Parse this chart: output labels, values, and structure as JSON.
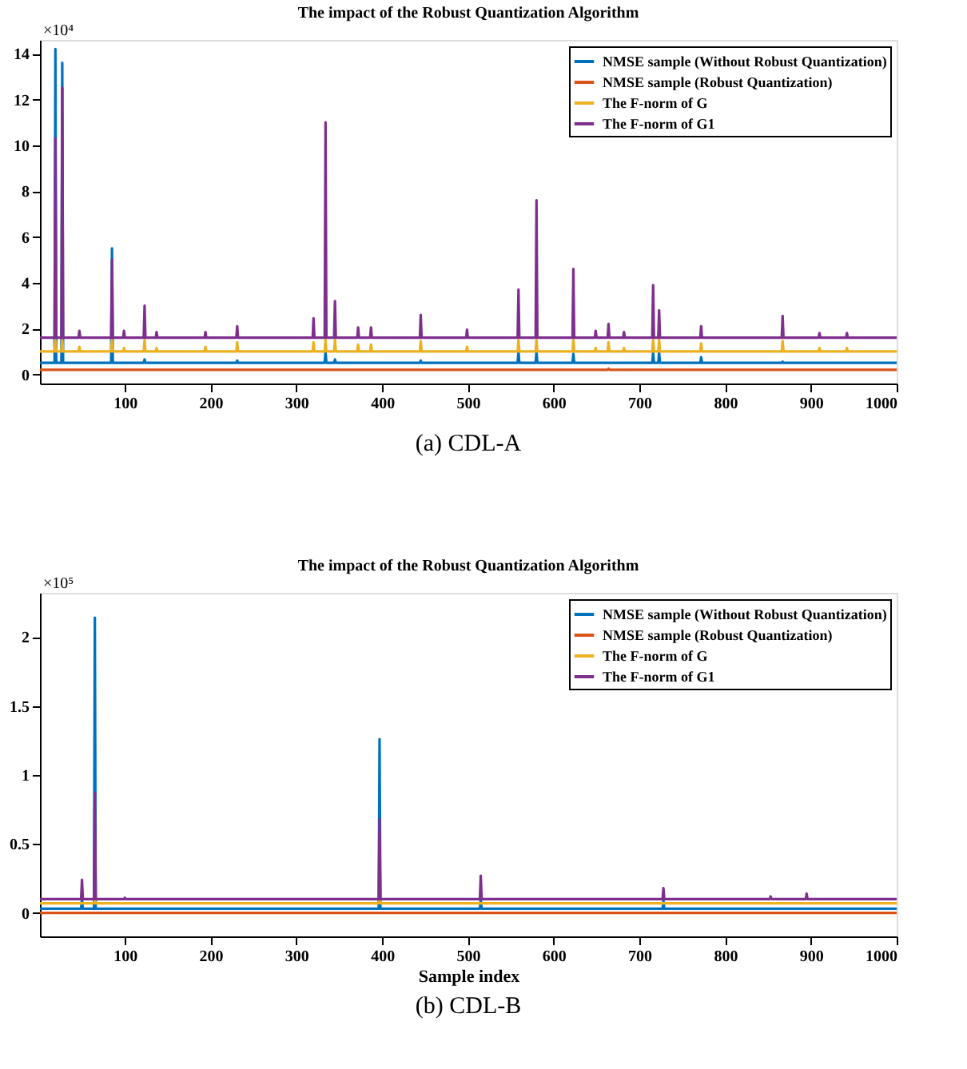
{
  "chart_data": [
    {
      "type": "line",
      "title": "The impact of the Robust Quantization Algorithm",
      "legend": "top right",
      "xlim": [
        1,
        1000
      ],
      "ylim": [
        -0.4,
        14.6
      ],
      "xticks": [
        100,
        200,
        300,
        400,
        500,
        600,
        700,
        800,
        900,
        1000
      ],
      "yticks": [
        0,
        2,
        4,
        6,
        8,
        10,
        12,
        14
      ],
      "annotations": [
        "×10⁴",
        "(a) CDL-A"
      ],
      "series": [
        {
          "name": "NMSE sample (Without Robust Quantization)",
          "color": "#0072bd",
          "x": [
            1,
            18,
            19,
            20,
            26,
            27,
            28,
            84,
            85,
            86,
            122,
            123,
            124,
            230,
            231,
            232,
            333,
            334,
            335,
            344,
            345,
            346,
            444,
            445,
            446,
            558,
            559,
            560,
            579,
            580,
            581,
            622,
            623,
            624,
            715,
            716,
            717,
            722,
            723,
            724,
            771,
            772,
            773,
            866,
            867,
            868,
            1000
          ],
          "values": [
            0.5,
            0.5,
            14.2,
            0.5,
            0.5,
            13.6,
            0.5,
            0.5,
            5.5,
            0.5,
            0.5,
            0.65,
            0.5,
            0.5,
            0.6,
            0.5,
            0.5,
            1.0,
            0.5,
            0.5,
            0.65,
            0.5,
            0.5,
            0.6,
            0.5,
            0.5,
            1.0,
            0.5,
            0.5,
            1.0,
            0.5,
            0.5,
            0.9,
            0.5,
            0.5,
            0.95,
            0.5,
            0.5,
            0.95,
            0.5,
            0.5,
            0.75,
            0.5,
            0.5,
            0.55,
            0.5,
            0.5
          ]
        },
        {
          "name": "NMSE sample (Robust Quantization)",
          "color": "#d95319",
          "x": [
            1,
            663,
            664,
            665,
            1000
          ],
          "values": [
            0.2,
            0.2,
            0.25,
            0.2,
            0.2
          ]
        },
        {
          "name": "The F-norm of G",
          "color": "#edb120",
          "x": [
            1,
            18,
            19,
            20,
            26,
            27,
            28,
            46,
            47,
            48,
            84,
            85,
            86,
            98,
            99,
            100,
            122,
            123,
            124,
            136,
            137,
            138,
            193,
            194,
            195,
            230,
            231,
            232,
            319,
            320,
            321,
            333,
            334,
            335,
            344,
            345,
            346,
            371,
            372,
            373,
            386,
            387,
            388,
            444,
            445,
            446,
            498,
            499,
            500,
            558,
            559,
            560,
            579,
            580,
            581,
            622,
            623,
            624,
            648,
            649,
            650,
            663,
            664,
            665,
            681,
            682,
            683,
            715,
            716,
            717,
            722,
            723,
            724,
            771,
            772,
            773,
            866,
            867,
            868,
            909,
            910,
            911,
            941,
            942,
            943,
            1000
          ],
          "values": [
            1.0,
            1.0,
            1.5,
            1.0,
            1.0,
            1.5,
            1.0,
            1.0,
            1.2,
            1.0,
            1.0,
            1.5,
            1.0,
            1.0,
            1.15,
            1.0,
            1.0,
            1.5,
            1.0,
            1.0,
            1.15,
            1.0,
            1.0,
            1.2,
            1.0,
            1.0,
            1.4,
            1.0,
            1.0,
            1.4,
            1.0,
            1.0,
            1.5,
            1.0,
            1.0,
            1.5,
            1.0,
            1.0,
            1.3,
            1.0,
            1.0,
            1.3,
            1.0,
            1.0,
            1.45,
            1.0,
            1.0,
            1.2,
            1.0,
            1.0,
            1.5,
            1.0,
            1.0,
            1.5,
            1.0,
            1.0,
            1.5,
            1.0,
            1.0,
            1.15,
            1.0,
            1.0,
            1.4,
            1.0,
            1.0,
            1.15,
            1.0,
            1.0,
            1.5,
            1.0,
            1.0,
            1.5,
            1.0,
            1.0,
            1.35,
            1.0,
            1.0,
            1.45,
            1.0,
            1.0,
            1.15,
            1.0,
            1.0,
            1.15,
            1.0,
            1.0
          ]
        },
        {
          "name": "The F-norm of G1",
          "color": "#7e2f8e",
          "x": [
            1,
            18,
            19,
            20,
            26,
            27,
            28,
            46,
            47,
            48,
            84,
            85,
            86,
            98,
            99,
            100,
            122,
            123,
            124,
            136,
            137,
            138,
            193,
            194,
            195,
            230,
            231,
            232,
            319,
            320,
            321,
            333,
            334,
            335,
            344,
            345,
            346,
            371,
            372,
            373,
            386,
            387,
            388,
            444,
            445,
            446,
            498,
            499,
            500,
            558,
            559,
            560,
            579,
            580,
            581,
            622,
            623,
            624,
            648,
            649,
            650,
            663,
            664,
            665,
            681,
            682,
            683,
            715,
            716,
            717,
            722,
            723,
            724,
            771,
            772,
            773,
            866,
            867,
            868,
            909,
            910,
            911,
            941,
            942,
            943,
            1000
          ],
          "values": [
            1.6,
            1.6,
            10.3,
            1.6,
            1.6,
            12.5,
            1.6,
            1.6,
            1.9,
            1.6,
            1.6,
            5.0,
            1.6,
            1.6,
            1.9,
            1.6,
            1.6,
            3.0,
            1.6,
            1.6,
            1.85,
            1.6,
            1.6,
            1.85,
            1.6,
            1.6,
            2.1,
            1.6,
            1.6,
            2.45,
            1.6,
            1.6,
            11.0,
            1.6,
            1.6,
            3.2,
            1.6,
            1.6,
            2.05,
            1.6,
            1.6,
            2.05,
            1.6,
            1.6,
            2.6,
            1.6,
            1.6,
            1.95,
            1.6,
            1.6,
            3.7,
            1.6,
            1.6,
            7.6,
            1.6,
            1.6,
            4.6,
            1.6,
            1.6,
            1.9,
            1.6,
            1.6,
            2.2,
            1.6,
            1.6,
            1.85,
            1.6,
            1.6,
            3.9,
            1.6,
            1.6,
            2.8,
            1.6,
            1.6,
            2.1,
            1.6,
            1.6,
            2.55,
            1.6,
            1.6,
            1.8,
            1.6,
            1.6,
            1.8,
            1.6,
            1.6
          ]
        }
      ]
    },
    {
      "type": "line",
      "title": "The impact of the Robust Quantization Algorithm",
      "xlabel": "Sample index",
      "legend": "top right",
      "xlim": [
        1,
        1000
      ],
      "ylim": [
        -0.17,
        2.32
      ],
      "xticks": [
        100,
        200,
        300,
        400,
        500,
        600,
        700,
        800,
        900,
        1000
      ],
      "yticks": [
        0,
        0.5,
        1,
        1.5,
        2
      ],
      "annotations": [
        "×10⁵",
        "(b) CDL-B"
      ],
      "series": [
        {
          "name": "NMSE sample (Without Robust Quantization)",
          "color": "#0072bd",
          "x": [
            1,
            49,
            50,
            51,
            64,
            65,
            66,
            396,
            397,
            398,
            514,
            515,
            516,
            727,
            728,
            729,
            1000
          ],
          "values": [
            0.03,
            0.03,
            0.1,
            0.03,
            0.03,
            2.14,
            0.03,
            0.03,
            1.26,
            0.03,
            0.03,
            0.1,
            0.03,
            0.03,
            0.09,
            0.03,
            0.03
          ]
        },
        {
          "name": "NMSE sample (Robust Quantization)",
          "color": "#d95319",
          "x": [
            1,
            1000
          ],
          "values": [
            0,
            0
          ]
        },
        {
          "name": "The F-norm of G",
          "color": "#edb120",
          "x": [
            1,
            64,
            65,
            66,
            396,
            397,
            398,
            1000
          ],
          "values": [
            0.07,
            0.07,
            0.09,
            0.07,
            0.07,
            0.09,
            0.07,
            0.07
          ]
        },
        {
          "name": "The F-norm of G1",
          "color": "#7e2f8e",
          "x": [
            1,
            49,
            50,
            51,
            64,
            65,
            66,
            99,
            100,
            101,
            396,
            397,
            398,
            514,
            515,
            516,
            727,
            728,
            729,
            852,
            853,
            854,
            894,
            895,
            896,
            1000
          ],
          "values": [
            0.1,
            0.1,
            0.24,
            0.1,
            0.1,
            0.87,
            0.1,
            0.1,
            0.11,
            0.1,
            0.1,
            0.68,
            0.1,
            0.1,
            0.27,
            0.1,
            0.1,
            0.18,
            0.1,
            0.1,
            0.12,
            0.1,
            0.1,
            0.14,
            0.1,
            0.1
          ]
        }
      ]
    }
  ]
}
